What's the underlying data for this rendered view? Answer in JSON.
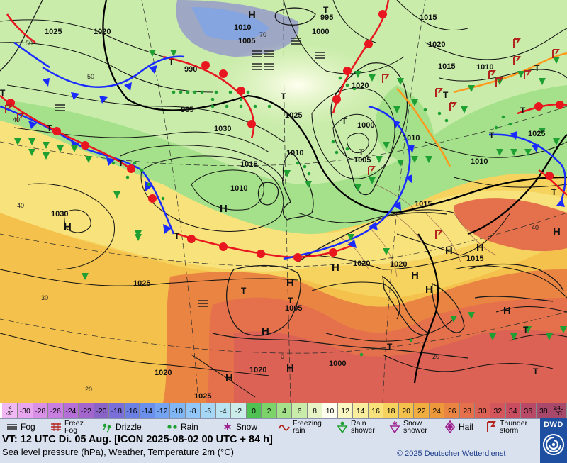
{
  "map": {
    "isobar_labels": [
      "1025",
      "1020",
      "1010",
      "1005",
      "995",
      "1000",
      "1015",
      "990",
      "985",
      "1030",
      "1025",
      "1020",
      "1000",
      "1005",
      "1010",
      "1015",
      "1010",
      "1020",
      "1015",
      "1010",
      "1020",
      "1020",
      "1015",
      "1010",
      "1015",
      "1030",
      "1025",
      "1020",
      "1025",
      "1020",
      "1005",
      "1000",
      "1010",
      "1025"
    ],
    "highs": [
      "H",
      "H",
      "H",
      "H",
      "H",
      "H",
      "H",
      "H",
      "H",
      "H",
      "H",
      "H",
      "H",
      "H"
    ],
    "lows": [
      "T",
      "T",
      "T",
      "T",
      "T",
      "T",
      "T",
      "T",
      "T",
      "T",
      "T",
      "T",
      "T",
      "T",
      "T",
      "T",
      "T",
      "T",
      "T"
    ],
    "graticule_labels": [
      "50",
      "50",
      "40",
      "40",
      "30",
      "20",
      "20",
      "0",
      "70",
      "40"
    ],
    "colors": {
      "warm_front": "#e8171f",
      "cold_front": "#1a2bff",
      "occlusion": "#ff9a1c",
      "isobar": "#111111",
      "rain_symbol": "#1fa033",
      "thunder_symbol": "#b2251e"
    }
  },
  "scale": {
    "first_top": "<",
    "first_bottom": "-30",
    "values": [
      "-30",
      "-28",
      "-26",
      "-24",
      "-22",
      "-20",
      "-18",
      "-16",
      "-14",
      "-12",
      "-10",
      "-8",
      "-6",
      "-4",
      "-2",
      "0",
      "2",
      "4",
      "6",
      "8",
      "10",
      "12",
      "14",
      "16",
      "18",
      "20",
      "22",
      "24",
      "26",
      "28",
      "30",
      "32",
      "34",
      "36",
      "38"
    ],
    "last_top": "≥40",
    "last_bottom": "°C",
    "colors": [
      "#e7a6ee",
      "#d991e8",
      "#c87fe0",
      "#b56fd6",
      "#a266cc",
      "#8a63c6",
      "#7a6fd8",
      "#6c7fe3",
      "#6a90ec",
      "#73a3f1",
      "#81b6f5",
      "#93c7f7",
      "#a6d6f5",
      "#b9e3f1",
      "#cbece9",
      "#4fc253",
      "#7bd36a",
      "#a4e18a",
      "#c9ecaa",
      "#e7f5c6",
      "#fffff0",
      "#fbf7c3",
      "#f9ee9e",
      "#f7e27c",
      "#f6d35e",
      "#f4c24c",
      "#f1ad40",
      "#ee983c",
      "#ea8442",
      "#e4714b",
      "#db6254",
      "#d2565b",
      "#c84d61",
      "#b84a67",
      "#a8486a"
    ]
  },
  "legend": {
    "fog": "Fog",
    "freezing_fog_1": "Freez.",
    "freezing_fog_2": "Fog",
    "drizzle": "Drizzle",
    "rain": "Rain",
    "snow": "Snow",
    "freezing_rain_1": "Freezing",
    "freezing_rain_2": "rain",
    "rain_shower_1": "Rain",
    "rain_shower_2": "shower",
    "snow_shower_1": "Snow",
    "snow_shower_2": "shower",
    "hail": "Hail",
    "thunderstorm_1": "Thunder",
    "thunderstorm_2": "storm"
  },
  "info": {
    "valid_time": "VT: 12 UTC Di.  05 Aug. [ICON 2025-08-02  00 UTC + 84 h]",
    "parameters": "Sea level pressure (hPa), Weather, Temperature 2m (°C)",
    "copyright": "© 2025 Deutscher Wetterdienst"
  },
  "logo": {
    "text": "DWD"
  }
}
